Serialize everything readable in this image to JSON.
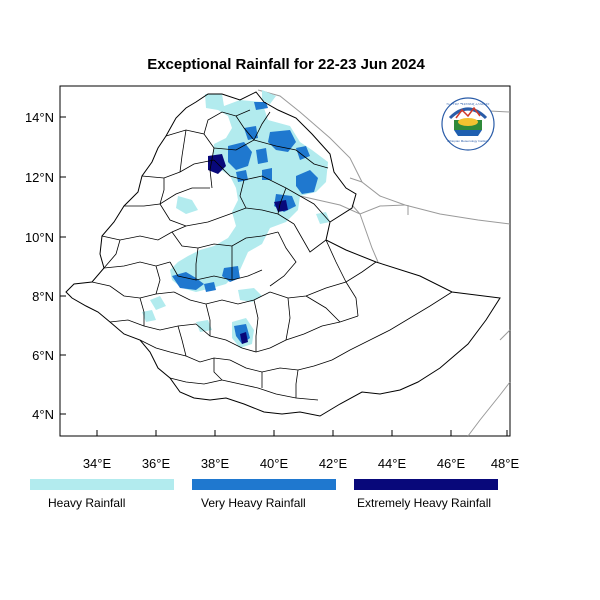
{
  "title": "Exceptional Rainfall for 22-23 Jun 2024",
  "axes": {
    "x_ticks": [
      "34°E",
      "36°E",
      "38°E",
      "40°E",
      "42°E",
      "44°E",
      "46°E",
      "48°E"
    ],
    "y_ticks": [
      "14°N",
      "12°N",
      "10°N",
      "8°N",
      "6°N",
      "4°N"
    ]
  },
  "legend": [
    {
      "label": "Heavy Rainfall",
      "color": "#b2ebee"
    },
    {
      "label": "Very Heavy Rainfall",
      "color": "#1f78cf"
    },
    {
      "label": "Extremely Heavy Rainfall",
      "color": "#08087a"
    }
  ],
  "logo": {
    "text_top": "የኢትዮጵያ ሜቲዎሮሎጂ ኢንስቲትዩት",
    "text_bottom": "Ethiopian Meteorology Institute"
  },
  "colors": {
    "heavy": "#b2ebee",
    "very_heavy": "#1f78cf",
    "extreme": "#08087a",
    "border": "#000000",
    "neighbor_border": "#9a9a9a"
  }
}
